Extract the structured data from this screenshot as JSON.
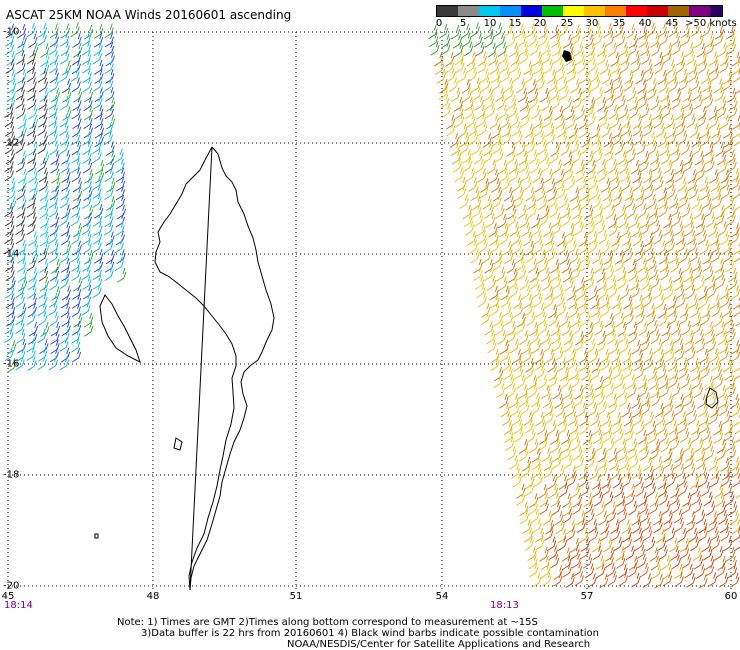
{
  "title": "ASCAT 25KM NOAA Winds 20160601 ascending",
  "legend": {
    "labels": [
      "0",
      "5",
      "10",
      "15",
      "20",
      "25",
      "30",
      "35",
      "40",
      "45",
      ">50 knots"
    ],
    "colors": [
      "#3a3a3a",
      "#8c8c8c",
      "#00c8f0",
      "#0090ff",
      "#0000e0",
      "#00c000",
      "#ffff00",
      "#ffc000",
      "#ff8000",
      "#ff0000",
      "#c80000",
      "#a06400",
      "#800080",
      "#2a0064"
    ]
  },
  "map": {
    "lat_ticks": [
      "-10",
      "-12",
      "-14",
      "-16",
      "-18",
      "-20"
    ],
    "lon_ticks": [
      "45",
      "48",
      "51",
      "54",
      "57",
      "60"
    ],
    "pass_times": [
      "18:14",
      "18:13"
    ],
    "west_swath": {
      "wind_speed_range_knots": [
        0,
        20
      ],
      "color_hint": "cyan/blue, some black and green"
    },
    "east_swath": {
      "wind_speed_range_knots": [
        20,
        35
      ],
      "color_hint": "yellow/orange/red"
    }
  },
  "notes": [
    "Note: 1) Times are GMT 2)Times along bottom correspond to measurement at ~15S",
    "3)Data buffer is 22 hrs from 20160601 4) Black wind barbs indicate possible contamination",
    "NOAA/NESDIS/Center for Satellite Applications and Research"
  ]
}
